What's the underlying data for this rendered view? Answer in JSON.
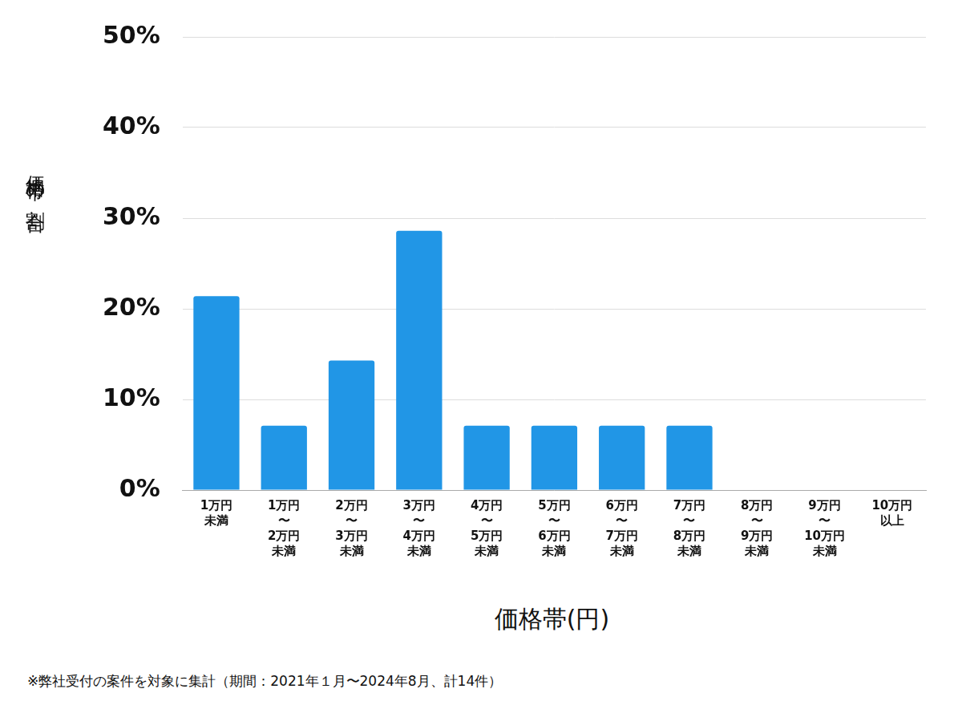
{
  "chart_data": {
    "type": "bar",
    "categories": [
      [
        "1万円",
        "未満"
      ],
      [
        "1万円",
        "〜",
        "2万円",
        "未満"
      ],
      [
        "2万円",
        "〜",
        "3万円",
        "未満"
      ],
      [
        "3万円",
        "〜",
        "4万円",
        "未満"
      ],
      [
        "4万円",
        "〜",
        "5万円",
        "未満"
      ],
      [
        "5万円",
        "〜",
        "6万円",
        "未満"
      ],
      [
        "6万円",
        "〜",
        "7万円",
        "未満"
      ],
      [
        "7万円",
        "〜",
        "8万円",
        "未満"
      ],
      [
        "8万円",
        "〜",
        "9万円",
        "未満"
      ],
      [
        "9万円",
        "〜",
        "10万円",
        "未満"
      ],
      [
        "10万円",
        "以上"
      ]
    ],
    "values": [
      21.4,
      7.1,
      14.3,
      28.6,
      7.1,
      7.1,
      7.1,
      7.1,
      0,
      0,
      0
    ],
    "color": "#2196e6",
    "ylim": [
      0,
      50
    ],
    "yticks": [
      {
        "value": 0,
        "label": "0%"
      },
      {
        "value": 10,
        "label": "10%"
      },
      {
        "value": 20,
        "label": "20%"
      },
      {
        "value": 30,
        "label": "30%"
      },
      {
        "value": 40,
        "label": "40%"
      },
      {
        "value": 50,
        "label": "50%"
      }
    ],
    "grid": true,
    "xlabel": "価格帯(円)",
    "ylabel": "価格帯の割合",
    "annotations": [
      "※弊社受付の案件を対象に集計（期間：2021年１月〜2024年8月、計14件）"
    ]
  }
}
